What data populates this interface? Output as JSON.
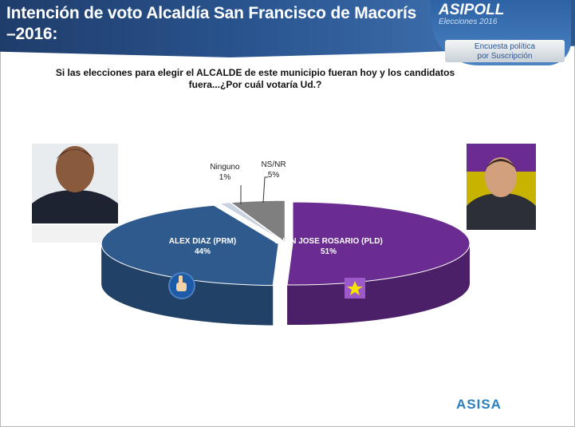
{
  "header": {
    "title_line1": "Intención de voto Alcaldía San Francisco de Macorís",
    "title_line2": "–2016:"
  },
  "logo": {
    "brand": "ASIPOLL",
    "subtitle": "Elecciones 2016",
    "box_line1": "Encuesta política",
    "box_line2": "por Suscripción"
  },
  "question": {
    "line1": "Si las elecciones para elegir el ALCALDE de este municipio fueran hoy  y los candidatos",
    "line2": "fuera...¿Por cuál votaría Ud.?"
  },
  "footer": {
    "brand": "ASISA"
  },
  "chart_data": {
    "type": "pie",
    "title": "Intención de voto Alcaldía San Francisco de Macorís –2016:",
    "slices": [
      {
        "label": "JUAN JOSE ROSARIO (PLD)",
        "value": 51,
        "display": "51%",
        "color": "#6a2c91"
      },
      {
        "label": "ALEX DIAZ (PRM)",
        "value": 44,
        "display": "44%",
        "color": "#2f5a8e"
      },
      {
        "label": "Ninguno",
        "value": 1,
        "display": "1%",
        "color": "#c9d3e0"
      },
      {
        "label": "NS/NR",
        "value": 5,
        "display": "5%",
        "color": "#7f7f7f"
      }
    ],
    "style": "3d-exploded"
  }
}
